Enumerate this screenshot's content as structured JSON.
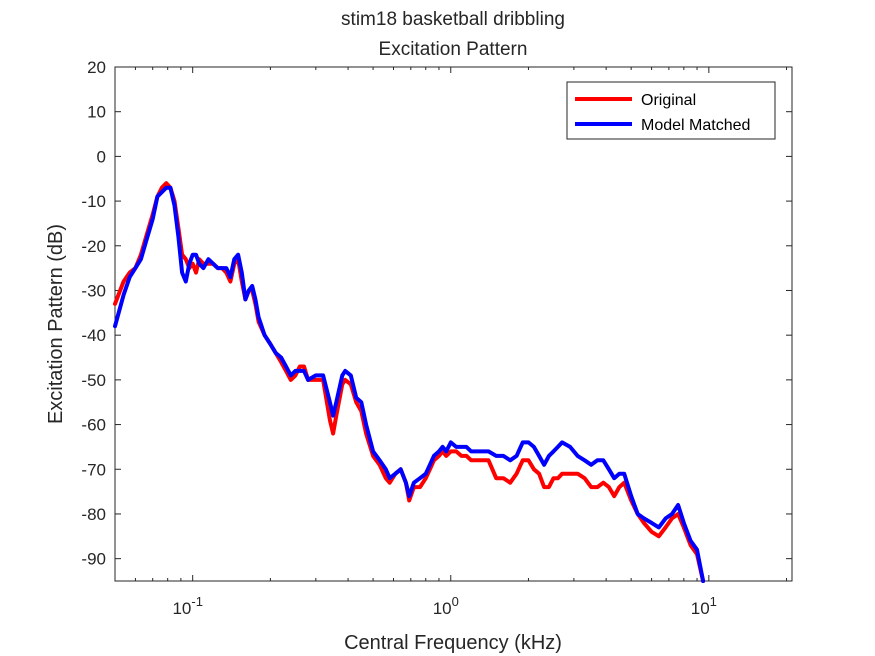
{
  "chart_data": {
    "type": "line",
    "title": "stim18 basketball dribbling",
    "subtitle": "Excitation Pattern",
    "xlabel": "Central Frequency (kHz)",
    "ylabel": "Excitation Pattern (dB)",
    "x_scale": "log",
    "xlim": [
      0.05,
      21
    ],
    "ylim": [
      -95,
      20
    ],
    "yticks": [
      20,
      10,
      0,
      -10,
      -20,
      -30,
      -40,
      -50,
      -60,
      -70,
      -80,
      -90
    ],
    "xticks": [
      {
        "value": 0.1,
        "base": "10",
        "exp": "-1"
      },
      {
        "value": 1,
        "base": "10",
        "exp": "0"
      },
      {
        "value": 10,
        "base": "10",
        "exp": "1"
      }
    ],
    "grid": false,
    "legend_position": "top-right",
    "series": [
      {
        "name": "Original",
        "color": "#ff0000",
        "points": [
          [
            0.05,
            -33
          ],
          [
            0.054,
            -28
          ],
          [
            0.057,
            -26
          ],
          [
            0.06,
            -25
          ],
          [
            0.063,
            -22
          ],
          [
            0.066,
            -18
          ],
          [
            0.07,
            -13
          ],
          [
            0.073,
            -9
          ],
          [
            0.076,
            -7
          ],
          [
            0.079,
            -6
          ],
          [
            0.082,
            -7
          ],
          [
            0.085,
            -10
          ],
          [
            0.088,
            -16
          ],
          [
            0.091,
            -22
          ],
          [
            0.094,
            -23
          ],
          [
            0.097,
            -25
          ],
          [
            0.1,
            -24
          ],
          [
            0.103,
            -26
          ],
          [
            0.106,
            -23
          ],
          [
            0.11,
            -24
          ],
          [
            0.115,
            -24
          ],
          [
            0.12,
            -24
          ],
          [
            0.125,
            -25
          ],
          [
            0.13,
            -25
          ],
          [
            0.135,
            -26
          ],
          [
            0.14,
            -28
          ],
          [
            0.145,
            -24
          ],
          [
            0.15,
            -23
          ],
          [
            0.155,
            -28
          ],
          [
            0.16,
            -32
          ],
          [
            0.165,
            -30
          ],
          [
            0.17,
            -30
          ],
          [
            0.175,
            -33
          ],
          [
            0.18,
            -37
          ],
          [
            0.19,
            -40
          ],
          [
            0.2,
            -42
          ],
          [
            0.21,
            -44
          ],
          [
            0.22,
            -46
          ],
          [
            0.23,
            -48
          ],
          [
            0.24,
            -50
          ],
          [
            0.25,
            -49
          ],
          [
            0.26,
            -47
          ],
          [
            0.27,
            -47
          ],
          [
            0.28,
            -50
          ],
          [
            0.3,
            -50
          ],
          [
            0.32,
            -50
          ],
          [
            0.34,
            -59
          ],
          [
            0.35,
            -62
          ],
          [
            0.36,
            -58
          ],
          [
            0.38,
            -51
          ],
          [
            0.39,
            -50
          ],
          [
            0.41,
            -51
          ],
          [
            0.43,
            -55
          ],
          [
            0.45,
            -57
          ],
          [
            0.47,
            -62
          ],
          [
            0.5,
            -67
          ],
          [
            0.53,
            -69
          ],
          [
            0.56,
            -72
          ],
          [
            0.58,
            -73
          ],
          [
            0.61,
            -71
          ],
          [
            0.64,
            -70
          ],
          [
            0.67,
            -73
          ],
          [
            0.69,
            -77
          ],
          [
            0.72,
            -74
          ],
          [
            0.76,
            -74
          ],
          [
            0.8,
            -72
          ],
          [
            0.83,
            -70
          ],
          [
            0.86,
            -68
          ],
          [
            0.9,
            -67
          ],
          [
            0.93,
            -66
          ],
          [
            0.96,
            -67
          ],
          [
            1.0,
            -66
          ],
          [
            1.05,
            -66
          ],
          [
            1.1,
            -67
          ],
          [
            1.15,
            -67
          ],
          [
            1.2,
            -68
          ],
          [
            1.3,
            -68
          ],
          [
            1.4,
            -68
          ],
          [
            1.5,
            -72
          ],
          [
            1.6,
            -72
          ],
          [
            1.7,
            -73
          ],
          [
            1.8,
            -71
          ],
          [
            1.9,
            -68
          ],
          [
            2.0,
            -68
          ],
          [
            2.1,
            -70
          ],
          [
            2.2,
            -71
          ],
          [
            2.3,
            -74
          ],
          [
            2.4,
            -74
          ],
          [
            2.5,
            -72
          ],
          [
            2.6,
            -72
          ],
          [
            2.7,
            -71
          ],
          [
            2.9,
            -71
          ],
          [
            3.1,
            -71
          ],
          [
            3.3,
            -72
          ],
          [
            3.5,
            -74
          ],
          [
            3.7,
            -74
          ],
          [
            3.9,
            -73
          ],
          [
            4.1,
            -74
          ],
          [
            4.3,
            -76
          ],
          [
            4.5,
            -74
          ],
          [
            4.7,
            -73
          ],
          [
            5.0,
            -77
          ],
          [
            5.3,
            -80
          ],
          [
            5.6,
            -82
          ],
          [
            6.0,
            -84
          ],
          [
            6.4,
            -85
          ],
          [
            6.8,
            -83
          ],
          [
            7.2,
            -81
          ],
          [
            7.6,
            -80
          ],
          [
            8.0,
            -83
          ],
          [
            8.5,
            -87
          ],
          [
            9.0,
            -89
          ],
          [
            9.5,
            -95
          ]
        ]
      },
      {
        "name": "Model Matched",
        "color": "#0000ff",
        "points": [
          [
            0.05,
            -38
          ],
          [
            0.054,
            -31
          ],
          [
            0.057,
            -27
          ],
          [
            0.06,
            -25
          ],
          [
            0.063,
            -23
          ],
          [
            0.066,
            -19
          ],
          [
            0.07,
            -14
          ],
          [
            0.073,
            -9
          ],
          [
            0.076,
            -8
          ],
          [
            0.079,
            -7
          ],
          [
            0.082,
            -7
          ],
          [
            0.085,
            -11
          ],
          [
            0.088,
            -18
          ],
          [
            0.091,
            -26
          ],
          [
            0.094,
            -28
          ],
          [
            0.097,
            -24
          ],
          [
            0.1,
            -22
          ],
          [
            0.103,
            -22
          ],
          [
            0.106,
            -24
          ],
          [
            0.11,
            -25
          ],
          [
            0.115,
            -23
          ],
          [
            0.12,
            -24
          ],
          [
            0.125,
            -25
          ],
          [
            0.13,
            -25
          ],
          [
            0.135,
            -25
          ],
          [
            0.14,
            -27
          ],
          [
            0.145,
            -23
          ],
          [
            0.15,
            -22
          ],
          [
            0.155,
            -26
          ],
          [
            0.16,
            -32
          ],
          [
            0.165,
            -30
          ],
          [
            0.17,
            -29
          ],
          [
            0.175,
            -32
          ],
          [
            0.18,
            -36
          ],
          [
            0.19,
            -40
          ],
          [
            0.2,
            -42
          ],
          [
            0.21,
            -44
          ],
          [
            0.22,
            -45
          ],
          [
            0.23,
            -47
          ],
          [
            0.24,
            -49
          ],
          [
            0.25,
            -48
          ],
          [
            0.26,
            -48
          ],
          [
            0.27,
            -48
          ],
          [
            0.28,
            -50
          ],
          [
            0.3,
            -49
          ],
          [
            0.32,
            -49
          ],
          [
            0.34,
            -55
          ],
          [
            0.35,
            -58
          ],
          [
            0.36,
            -55
          ],
          [
            0.38,
            -49
          ],
          [
            0.39,
            -48
          ],
          [
            0.41,
            -49
          ],
          [
            0.43,
            -54
          ],
          [
            0.45,
            -55
          ],
          [
            0.47,
            -60
          ],
          [
            0.5,
            -66
          ],
          [
            0.53,
            -68
          ],
          [
            0.56,
            -70
          ],
          [
            0.58,
            -72
          ],
          [
            0.61,
            -71
          ],
          [
            0.64,
            -70
          ],
          [
            0.67,
            -73
          ],
          [
            0.69,
            -76
          ],
          [
            0.72,
            -73
          ],
          [
            0.76,
            -72
          ],
          [
            0.8,
            -71
          ],
          [
            0.83,
            -69
          ],
          [
            0.86,
            -67
          ],
          [
            0.9,
            -66
          ],
          [
            0.93,
            -65
          ],
          [
            0.96,
            -66
          ],
          [
            1.0,
            -64
          ],
          [
            1.05,
            -65
          ],
          [
            1.1,
            -65
          ],
          [
            1.15,
            -65
          ],
          [
            1.2,
            -66
          ],
          [
            1.3,
            -66
          ],
          [
            1.4,
            -66
          ],
          [
            1.5,
            -67
          ],
          [
            1.6,
            -67
          ],
          [
            1.7,
            -68
          ],
          [
            1.8,
            -67
          ],
          [
            1.9,
            -64
          ],
          [
            2.0,
            -64
          ],
          [
            2.1,
            -65
          ],
          [
            2.2,
            -67
          ],
          [
            2.3,
            -69
          ],
          [
            2.4,
            -67
          ],
          [
            2.5,
            -66
          ],
          [
            2.6,
            -65
          ],
          [
            2.7,
            -64
          ],
          [
            2.9,
            -65
          ],
          [
            3.1,
            -67
          ],
          [
            3.3,
            -68
          ],
          [
            3.5,
            -69
          ],
          [
            3.7,
            -68
          ],
          [
            3.9,
            -68
          ],
          [
            4.1,
            -70
          ],
          [
            4.3,
            -72
          ],
          [
            4.5,
            -71
          ],
          [
            4.7,
            -71
          ],
          [
            5.0,
            -76
          ],
          [
            5.3,
            -80
          ],
          [
            5.6,
            -81
          ],
          [
            6.0,
            -82
          ],
          [
            6.4,
            -83
          ],
          [
            6.8,
            -81
          ],
          [
            7.2,
            -80
          ],
          [
            7.6,
            -78
          ],
          [
            8.0,
            -82
          ],
          [
            8.5,
            -86
          ],
          [
            9.0,
            -88
          ],
          [
            9.5,
            -95
          ]
        ]
      }
    ]
  }
}
